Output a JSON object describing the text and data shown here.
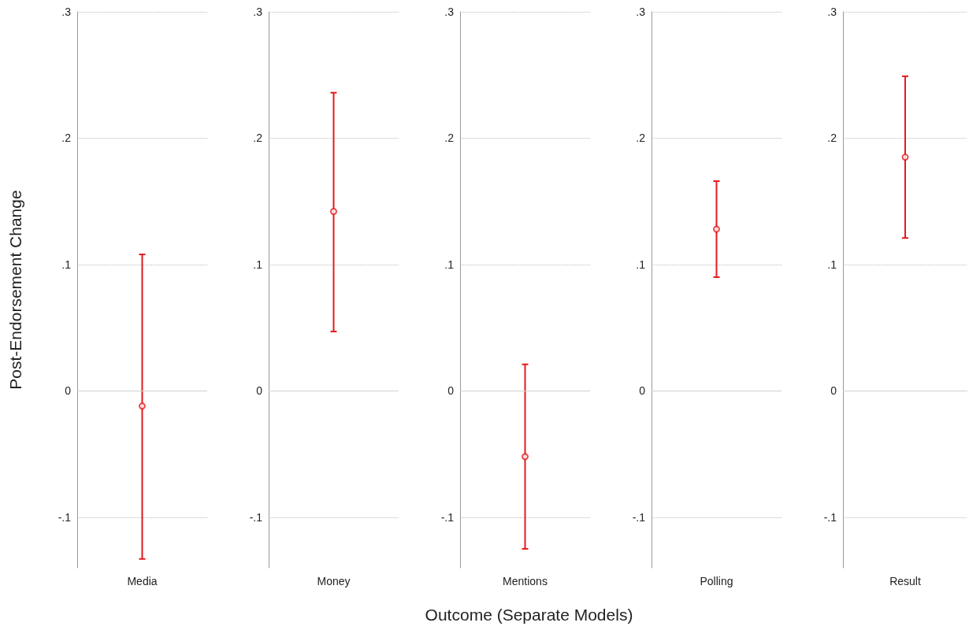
{
  "chart_data": [
    {
      "type": "scatter",
      "ylabel": "Post-Endorsement Change",
      "categories": [
        "Media"
      ],
      "series": [
        {
          "color": "#e31a1c",
          "values": [
            -0.012
          ],
          "errors": [
            [
              -0.133,
              0.108
            ]
          ]
        }
      ],
      "ylim": [
        -0.14,
        0.3
      ],
      "yticks": [
        {
          "value": -0.1,
          "label": "-.1"
        },
        {
          "value": 0,
          "label": "0"
        },
        {
          "value": 0.1,
          "label": ".1"
        },
        {
          "value": 0.2,
          "label": ".2"
        },
        {
          "value": 0.3,
          "label": ".3"
        }
      ],
      "ref_lines": [
        {
          "axis": "y",
          "value": 0,
          "color": "#d0d0d0",
          "line_style": "solid"
        }
      ],
      "grid": "y",
      "marker": "circle"
    },
    {
      "type": "scatter",
      "categories": [
        "Money"
      ],
      "series": [
        {
          "color": "#e31a1c",
          "values": [
            0.142
          ],
          "errors": [
            [
              0.047,
              0.236
            ]
          ]
        }
      ],
      "ylim": [
        -0.14,
        0.3
      ],
      "yticks": [
        {
          "value": -0.1,
          "label": "-.1"
        },
        {
          "value": 0,
          "label": "0"
        },
        {
          "value": 0.1,
          "label": ".1"
        },
        {
          "value": 0.2,
          "label": ".2"
        },
        {
          "value": 0.3,
          "label": ".3"
        }
      ],
      "ref_lines": [
        {
          "axis": "y",
          "value": 0,
          "color": "#d0d0d0",
          "line_style": "solid"
        }
      ],
      "grid": "y",
      "marker": "circle"
    },
    {
      "type": "scatter",
      "xlabel": "Outcome (Separate Models)",
      "categories": [
        "Mentions"
      ],
      "series": [
        {
          "color": "#e31a1c",
          "values": [
            -0.052
          ],
          "errors": [
            [
              -0.125,
              0.021
            ]
          ]
        }
      ],
      "ylim": [
        -0.14,
        0.3
      ],
      "yticks": [
        {
          "value": -0.1,
          "label": "-.1"
        },
        {
          "value": 0,
          "label": "0"
        },
        {
          "value": 0.1,
          "label": ".1"
        },
        {
          "value": 0.2,
          "label": ".2"
        },
        {
          "value": 0.3,
          "label": ".3"
        }
      ],
      "ref_lines": [
        {
          "axis": "y",
          "value": 0,
          "color": "#d0d0d0",
          "line_style": "solid"
        }
      ],
      "grid": "y",
      "marker": "circle"
    },
    {
      "type": "scatter",
      "categories": [
        "Polling"
      ],
      "series": [
        {
          "color": "#e31a1c",
          "values": [
            0.128
          ],
          "errors": [
            [
              0.09,
              0.166
            ]
          ]
        }
      ],
      "ylim": [
        -0.14,
        0.3
      ],
      "yticks": [
        {
          "value": -0.1,
          "label": "-.1"
        },
        {
          "value": 0,
          "label": "0"
        },
        {
          "value": 0.1,
          "label": ".1"
        },
        {
          "value": 0.2,
          "label": ".2"
        },
        {
          "value": 0.3,
          "label": ".3"
        }
      ],
      "ref_lines": [
        {
          "axis": "y",
          "value": 0,
          "color": "#d0d0d0",
          "line_style": "solid"
        }
      ],
      "grid": "y",
      "marker": "circle"
    },
    {
      "type": "scatter",
      "categories": [
        "Result"
      ],
      "series": [
        {
          "color": "#e31a1c",
          "values": [
            0.185
          ],
          "errors": [
            [
              0.121,
              0.249
            ]
          ]
        }
      ],
      "ylim": [
        -0.14,
        0.3
      ],
      "yticks": [
        {
          "value": -0.1,
          "label": "-.1"
        },
        {
          "value": 0,
          "label": "0"
        },
        {
          "value": 0.1,
          "label": ".1"
        },
        {
          "value": 0.2,
          "label": ".2"
        },
        {
          "value": 0.3,
          "label": ".3"
        }
      ],
      "ref_lines": [
        {
          "axis": "y",
          "value": 0,
          "color": "#d0d0d0",
          "line_style": "solid"
        }
      ],
      "grid": "y",
      "marker": "circle"
    }
  ]
}
